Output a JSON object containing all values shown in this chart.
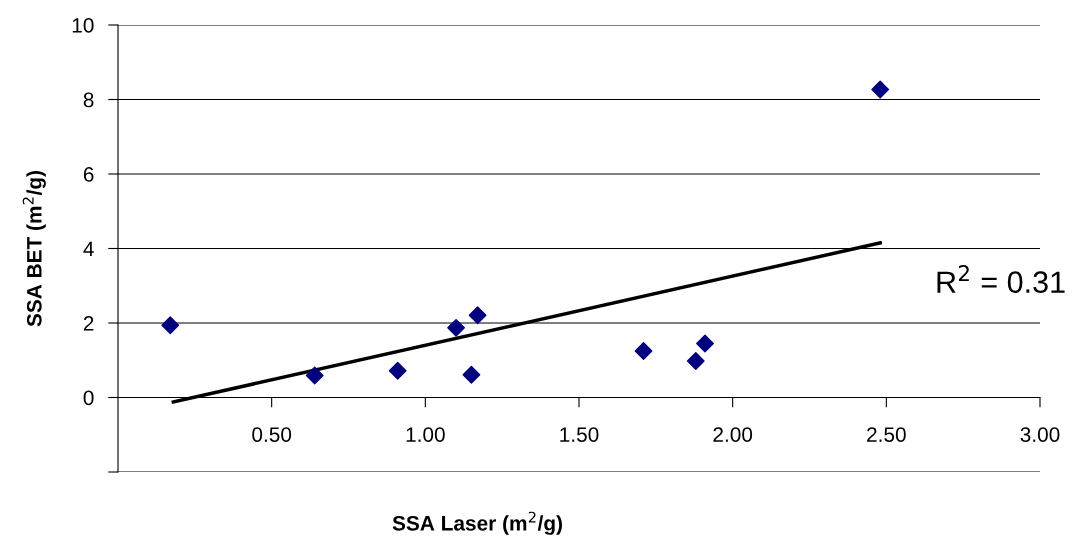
{
  "chart_data": {
    "type": "scatter",
    "xlabel": "SSA Laser (m$^{2}$/g)",
    "ylabel": "SSA BET (m$^{2}$/g)",
    "series": [
      {
        "color": "#000080",
        "marker": "diamond",
        "x": [
          0.17,
          0.64,
          0.91,
          1.1,
          1.17,
          1.15,
          1.71,
          1.88,
          1.91,
          2.48
        ],
        "values": [
          1.94,
          0.59,
          0.72,
          1.87,
          2.21,
          0.61,
          1.25,
          0.98,
          1.45,
          8.27
        ]
      },
      {
        "type": "line",
        "color": "#000000",
        "marker": "none",
        "x": [
          0.18,
          2.48
        ],
        "values": [
          -0.12,
          4.15
        ]
      }
    ],
    "annotations": [
      "R$^{2}$ = 0.31"
    ],
    "xlim": [
      0,
      3
    ],
    "xticks": [
      {
        "value": 0.5,
        "label": "0.50"
      },
      {
        "value": 1.0,
        "label": "1.00"
      },
      {
        "value": 1.5,
        "label": "1.50"
      },
      {
        "value": 2.0,
        "label": "2.00"
      },
      {
        "value": 2.5,
        "label": "2.50"
      },
      {
        "value": 3.0,
        "label": "3.00"
      }
    ],
    "ylim": [
      -2,
      10
    ],
    "yticks": [
      {
        "value": -2,
        "label": null
      },
      0,
      2,
      4,
      6,
      8,
      10
    ],
    "grid": "y"
  }
}
